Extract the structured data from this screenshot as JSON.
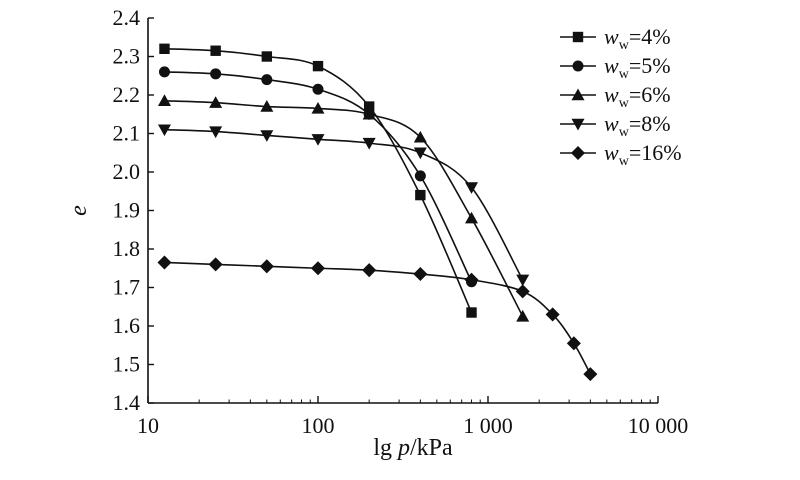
{
  "chart_data": {
    "type": "line",
    "title": "",
    "xlabel": {
      "prefix": "lg ",
      "var": "p",
      "suffix": "/kPa"
    },
    "ylabel": "e",
    "x_scale": "log",
    "xlim": [
      10,
      10000
    ],
    "ylim": [
      1.4,
      2.4
    ],
    "x_ticks": [
      10,
      100,
      1000,
      10000
    ],
    "x_tick_labels": [
      "10",
      "100",
      "1 000",
      "10 000"
    ],
    "y_ticks": [
      1.4,
      1.5,
      1.6,
      1.7,
      1.8,
      1.9,
      2.0,
      2.1,
      2.2,
      2.3,
      2.4
    ],
    "y_tick_labels": [
      "1.4",
      "1.5",
      "1.6",
      "1.7",
      "1.8",
      "1.9",
      "2.0",
      "2.1",
      "2.2",
      "2.3",
      "2.4"
    ],
    "grid": false,
    "legend_position": "top-right",
    "series": [
      {
        "name": "w_w=4%",
        "legend": {
          "var": "w",
          "sub": "w",
          "value": "=4%"
        },
        "marker": "square",
        "x": [
          12.5,
          25,
          50,
          100,
          200,
          400,
          800
        ],
        "y": [
          2.32,
          2.315,
          2.3,
          2.275,
          2.17,
          1.94,
          1.635
        ]
      },
      {
        "name": "w_w=5%",
        "legend": {
          "var": "w",
          "sub": "w",
          "value": "=5%"
        },
        "marker": "circle",
        "x": [
          12.5,
          25,
          50,
          100,
          200,
          400,
          800
        ],
        "y": [
          2.26,
          2.255,
          2.24,
          2.215,
          2.15,
          1.99,
          1.715
        ]
      },
      {
        "name": "w_w=6%",
        "legend": {
          "var": "w",
          "sub": "w",
          "value": "=6%"
        },
        "marker": "triangle-up",
        "x": [
          12.5,
          25,
          50,
          100,
          200,
          400,
          800,
          1600
        ],
        "y": [
          2.185,
          2.18,
          2.17,
          2.165,
          2.15,
          2.09,
          1.88,
          1.625
        ]
      },
      {
        "name": "w_w=8%",
        "legend": {
          "var": "w",
          "sub": "w",
          "value": "=8%"
        },
        "marker": "triangle-down",
        "x": [
          12.5,
          25,
          50,
          100,
          200,
          400,
          800,
          1600
        ],
        "y": [
          2.11,
          2.105,
          2.095,
          2.085,
          2.075,
          2.05,
          1.96,
          1.72
        ]
      },
      {
        "name": "w_w=16%",
        "legend": {
          "var": "w",
          "sub": "w",
          "value": "=16%"
        },
        "marker": "diamond",
        "x": [
          12.5,
          25,
          50,
          100,
          200,
          400,
          800,
          1600,
          2400,
          3200,
          4000
        ],
        "y": [
          1.765,
          1.76,
          1.755,
          1.75,
          1.745,
          1.735,
          1.72,
          1.69,
          1.63,
          1.555,
          1.475
        ]
      }
    ]
  }
}
